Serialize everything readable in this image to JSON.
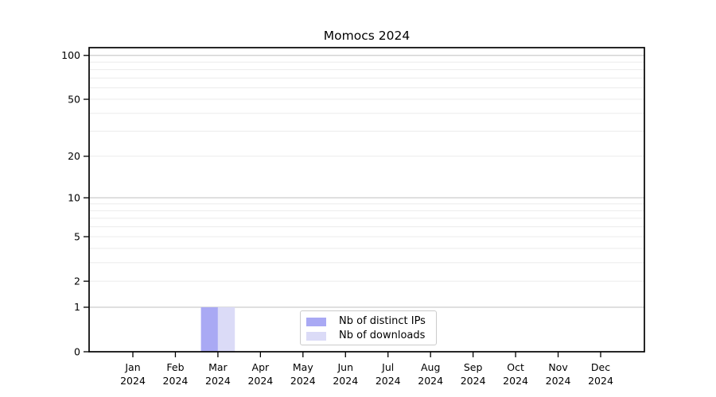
{
  "chart_data": {
    "type": "bar",
    "title": "Momocs 2024",
    "x_tick_months": [
      "Jan",
      "Feb",
      "Mar",
      "Apr",
      "May",
      "Jun",
      "Jul",
      "Aug",
      "Sep",
      "Oct",
      "Nov",
      "Dec"
    ],
    "x_tick_year": "2024",
    "categories": [
      "Jan 2024",
      "Feb 2024",
      "Mar 2024",
      "Apr 2024",
      "May 2024",
      "Jun 2024",
      "Jul 2024",
      "Aug 2024",
      "Sep 2024",
      "Oct 2024",
      "Nov 2024",
      "Dec 2024"
    ],
    "series": [
      {
        "name": "Nb of distinct IPs",
        "color": "#a9a9f4",
        "values": [
          0,
          0,
          1,
          0,
          0,
          0,
          0,
          0,
          0,
          0,
          0,
          0
        ]
      },
      {
        "name": "Nb of downloads",
        "color": "#dbdbf7",
        "values": [
          0,
          0,
          1,
          0,
          0,
          0,
          0,
          0,
          0,
          0,
          0,
          0
        ]
      }
    ],
    "yticks": [
      0,
      1,
      2,
      5,
      10,
      20,
      50,
      100
    ],
    "ylim": [
      0,
      113
    ],
    "yscale": "log1p",
    "xlabel": "",
    "ylabel": "",
    "grid": {
      "orientation": "horizontal",
      "major_values": [
        1,
        10,
        100
      ],
      "minor_values": [
        2,
        3,
        4,
        5,
        6,
        7,
        8,
        9,
        20,
        30,
        40,
        50,
        60,
        70,
        80,
        90
      ],
      "major_color": "#c6c6c6",
      "minor_color": "#ebebeb"
    },
    "legend": {
      "position": "lower center inside"
    },
    "axis_color": "#000000",
    "background": "#ffffff"
  }
}
